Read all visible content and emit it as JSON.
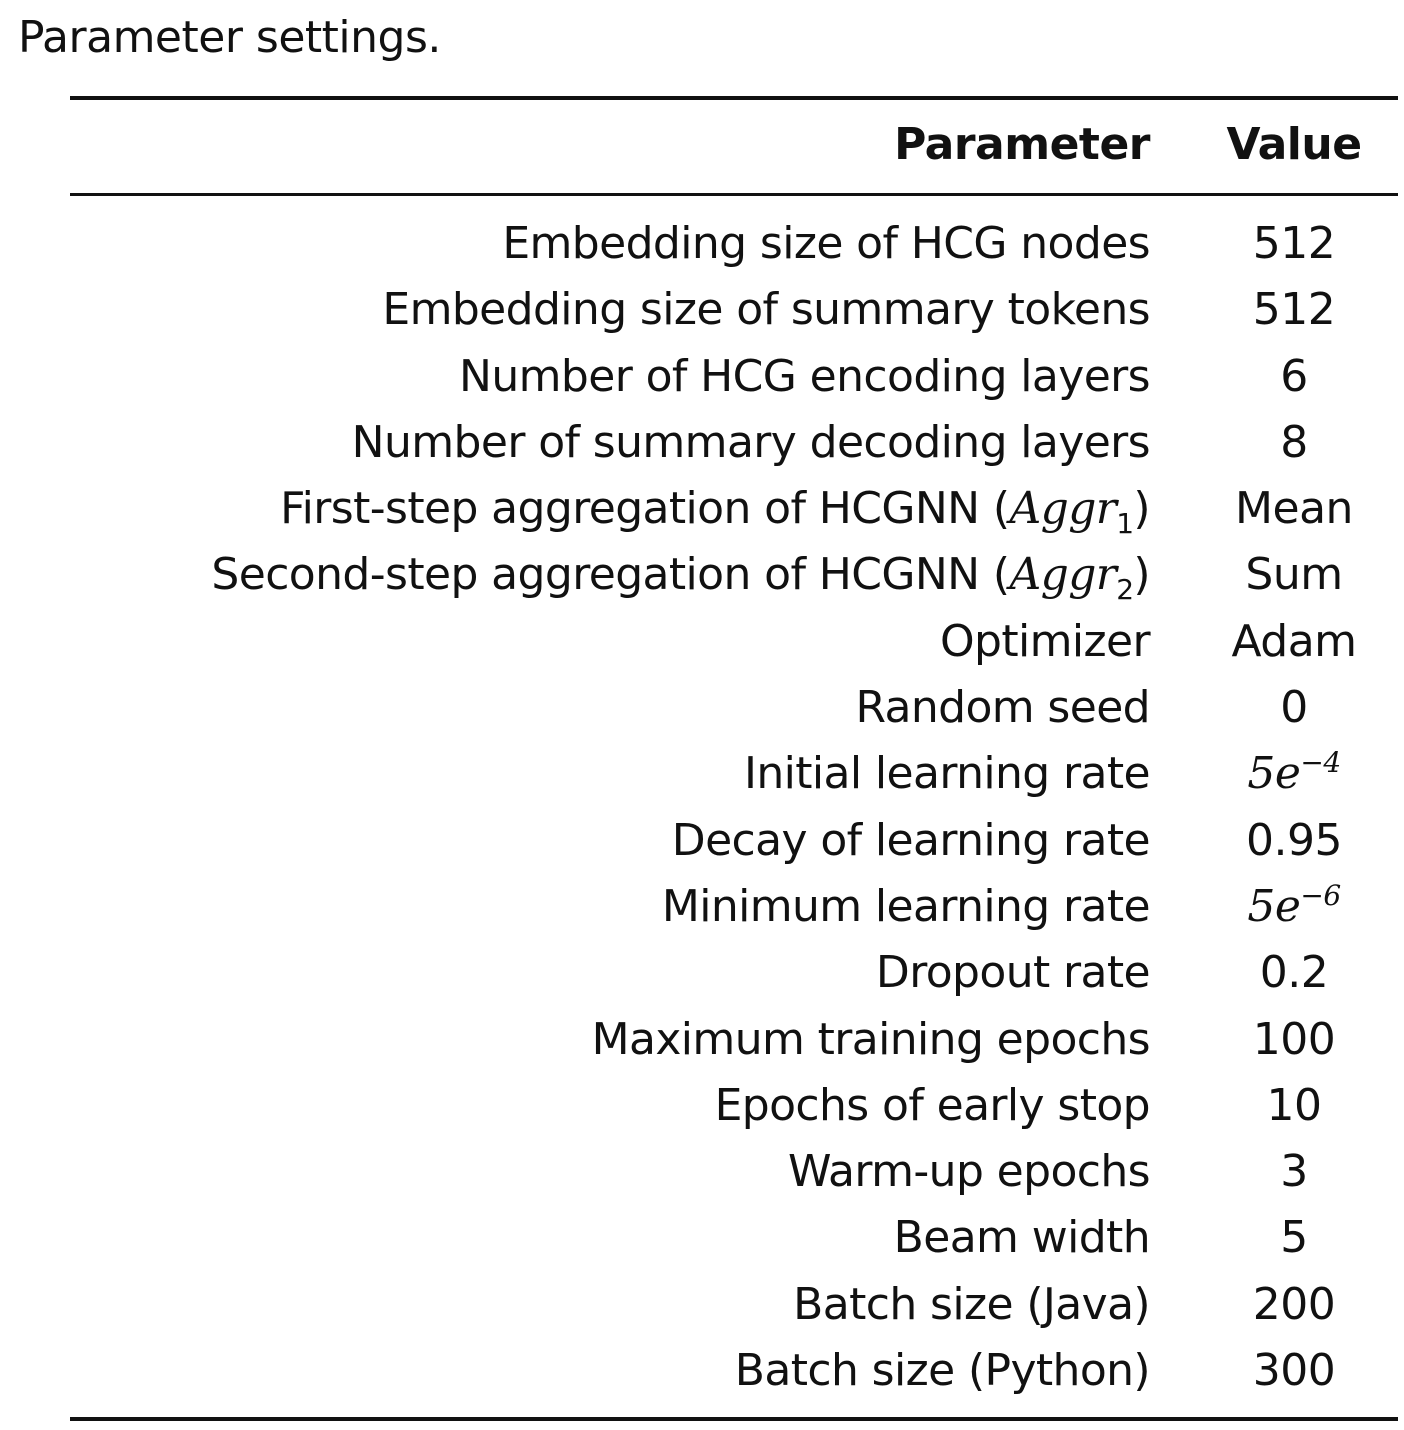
{
  "caption": "Parameter settings.",
  "table": {
    "headers": {
      "parameter": "Parameter",
      "value": "Value"
    },
    "rows": [
      {
        "parameter": "Embedding size of HCG nodes",
        "value": "512"
      },
      {
        "parameter": "Embedding size of summary tokens",
        "value": "512"
      },
      {
        "parameter": "Number of HCG encoding layers",
        "value": "6"
      },
      {
        "parameter": "Number of summary decoding layers",
        "value": "8"
      },
      {
        "parameter": "First-step aggregation of HCGNN",
        "math": {
          "open": "(",
          "symbol": "Aggr",
          "sub": "1",
          "close": ")"
        },
        "value": "Mean"
      },
      {
        "parameter": "Second-step aggregation of HCGNN",
        "math": {
          "open": "(",
          "symbol": "Aggr",
          "sub": "2",
          "close": ")"
        },
        "value": "Sum"
      },
      {
        "parameter": "Optimizer",
        "value": "Adam"
      },
      {
        "parameter": "Random seed",
        "value": "0"
      },
      {
        "parameter": "Initial learning rate",
        "value_math": {
          "base": "5e",
          "exp": "−4"
        }
      },
      {
        "parameter": "Decay of learning rate",
        "value": "0.95"
      },
      {
        "parameter": "Minimum learning rate",
        "value_math": {
          "base": "5e",
          "exp": "−6"
        }
      },
      {
        "parameter": "Dropout rate",
        "value": "0.2"
      },
      {
        "parameter": "Maximum training epochs",
        "value": "100"
      },
      {
        "parameter": "Epochs of early stop",
        "value": "10"
      },
      {
        "parameter": "Warm-up epochs",
        "value": "3"
      },
      {
        "parameter": "Beam width",
        "value": "5"
      },
      {
        "parameter": "Batch size (Java)",
        "value": "200"
      },
      {
        "parameter": "Batch size (Python)",
        "value": "300"
      }
    ]
  }
}
